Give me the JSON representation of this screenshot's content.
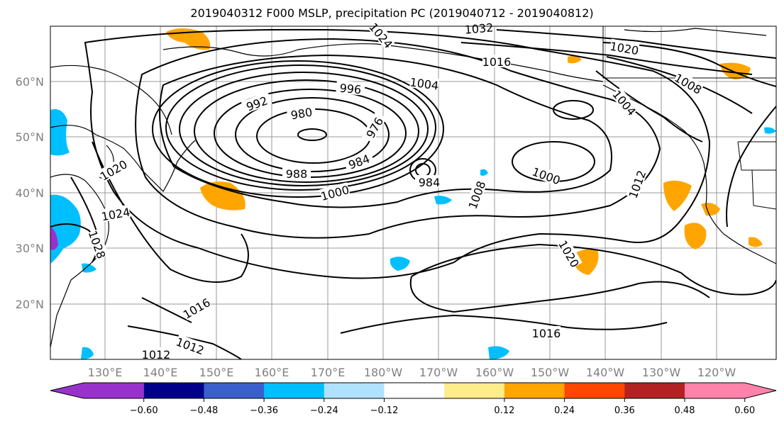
{
  "title": "2019040312 F000 MSLP, precipitation PC (2019040712 - 2019040812)",
  "lon_labels": [
    "130°E",
    "140°E",
    "150°E",
    "160°E",
    "170°E",
    "180°W",
    "170°W",
    "160°W",
    "150°W",
    "140°W",
    "130°W",
    "120°W"
  ],
  "lat_labels": [
    "60°N",
    "50°N",
    "40°N",
    "30°N",
    "20°N"
  ],
  "isobar_labels": [
    "992",
    "996",
    "1004",
    "980",
    "976",
    "984",
    "988",
    "984",
    "1000",
    "1008",
    "1000",
    "1012",
    "1016",
    "1020",
    "1024",
    "1028",
    "1032",
    "1020",
    "1004",
    "1008",
    "1020",
    "1024",
    "1016",
    "1012",
    "1016",
    "1012"
  ],
  "colorbar": {
    "ticks": [
      "−0.60",
      "−0.48",
      "−0.36",
      "−0.24",
      "−0.12",
      "0.12",
      "0.24",
      "0.36",
      "0.48",
      "0.60"
    ],
    "colors": [
      "#9932cc",
      "#00008b",
      "#3a5fcd",
      "#00bfff",
      "#b0e2ff",
      "#ffffff",
      "#ffec8b",
      "#ffa500",
      "#ff4500",
      "#b22222",
      "#ff82ab"
    ]
  }
}
